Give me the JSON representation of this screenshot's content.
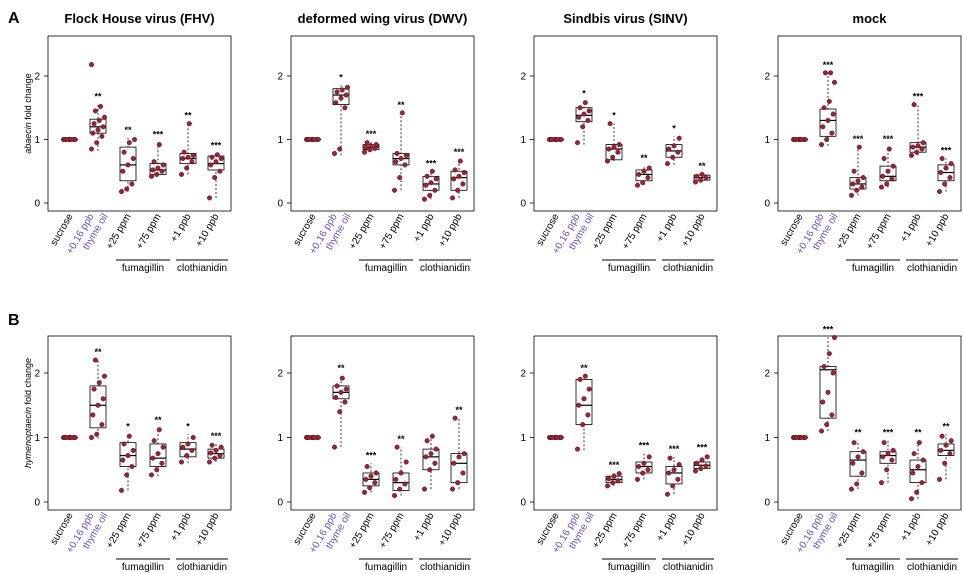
{
  "colors": {
    "point": "#9b2335",
    "point_stroke": "#3a0d14",
    "box": "#000000",
    "axis": "#000000",
    "thyme_label": "#6a4fc1"
  },
  "row_labels": [
    "A",
    "B"
  ],
  "ylabels": [
    {
      "gene": "abaecin",
      "suffix": " fold change"
    },
    {
      "gene": "hymenoptaecin",
      "suffix": " fold change"
    }
  ],
  "categories": [
    "sucrose",
    "+0.16 ppb",
    "thyme oil",
    "+25 ppm",
    "+75 ppm",
    "+1 ppb",
    "+10 ppb"
  ],
  "groups": [
    "fumagillin",
    "clothianidin"
  ],
  "yticks": [
    "0",
    "1",
    "2"
  ],
  "chart_data": [
    {
      "type": "box",
      "title": "Flock House virus (FHV)",
      "ylabel": "abaecin fold change",
      "ylim": [
        0,
        2.5
      ],
      "boxes": [
        {
          "cat": "sucrose",
          "q1": 1,
          "med": 1,
          "q3": 1,
          "lo": 1,
          "hi": 1,
          "sig": "",
          "points": [
            1,
            1,
            1,
            1,
            1,
            1,
            1,
            1
          ]
        },
        {
          "cat": "+0.16 ppb thyme oil",
          "q1": 1.1,
          "med": 1.2,
          "q3": 1.32,
          "lo": 0.82,
          "hi": 1.55,
          "sig": "**",
          "points": [
            0.85,
            0.95,
            1.05,
            1.1,
            1.15,
            1.2,
            1.25,
            1.3,
            1.35,
            1.45,
            1.52,
            2.18
          ]
        },
        {
          "cat": "+25 ppm fumagillin",
          "q1": 0.35,
          "med": 0.6,
          "q3": 0.88,
          "lo": 0.18,
          "hi": 1.02,
          "sig": "**",
          "points": [
            0.18,
            0.22,
            0.3,
            0.5,
            0.6,
            0.7,
            0.8,
            0.95,
            1.0
          ]
        },
        {
          "cat": "+75 ppm fumagillin",
          "q1": 0.45,
          "med": 0.52,
          "q3": 0.62,
          "lo": 0.42,
          "hi": 0.95,
          "sig": "***",
          "points": [
            0.42,
            0.45,
            0.5,
            0.52,
            0.55,
            0.6,
            0.65,
            0.92
          ]
        },
        {
          "cat": "+1 ppb clothianidin",
          "q1": 0.62,
          "med": 0.7,
          "q3": 0.78,
          "lo": 0.45,
          "hi": 1.25,
          "sig": "**",
          "points": [
            0.45,
            0.55,
            0.65,
            0.7,
            0.72,
            0.75,
            0.8,
            1.25
          ]
        },
        {
          "cat": "+10 ppb clothianidin",
          "q1": 0.52,
          "med": 0.62,
          "q3": 0.74,
          "lo": 0.08,
          "hi": 0.78,
          "sig": "***",
          "points": [
            0.08,
            0.4,
            0.5,
            0.6,
            0.65,
            0.7,
            0.72,
            0.76
          ]
        }
      ]
    },
    {
      "type": "box",
      "title": "deformed wing virus (DWV)",
      "ylabel": "",
      "ylim": [
        0,
        2.5
      ],
      "boxes": [
        {
          "cat": "sucrose",
          "q1": 1,
          "med": 1,
          "q3": 1,
          "lo": 1,
          "hi": 1,
          "sig": "",
          "points": [
            1,
            1,
            1,
            1,
            1,
            1,
            1,
            1
          ]
        },
        {
          "cat": "+0.16 ppb thyme oil",
          "q1": 1.55,
          "med": 1.7,
          "q3": 1.8,
          "lo": 0.75,
          "hi": 1.85,
          "sig": "*",
          "points": [
            0.78,
            0.85,
            1.5,
            1.58,
            1.65,
            1.7,
            1.75,
            1.78,
            1.82
          ]
        },
        {
          "cat": "+25 ppm fumagillin",
          "q1": 0.84,
          "med": 0.88,
          "q3": 0.92,
          "lo": 0.8,
          "hi": 0.96,
          "sig": "***",
          "points": [
            0.8,
            0.84,
            0.86,
            0.88,
            0.9,
            0.92,
            0.95
          ]
        },
        {
          "cat": "+75 ppm fumagillin",
          "q1": 0.6,
          "med": 0.7,
          "q3": 0.78,
          "lo": 0.2,
          "hi": 1.42,
          "sig": "**",
          "points": [
            0.2,
            0.4,
            0.6,
            0.65,
            0.7,
            0.75,
            0.78,
            1.42
          ]
        },
        {
          "cat": "+1 ppb clothianidin",
          "q1": 0.2,
          "med": 0.3,
          "q3": 0.42,
          "lo": 0.06,
          "hi": 0.5,
          "sig": "***",
          "points": [
            0.06,
            0.12,
            0.2,
            0.28,
            0.32,
            0.38,
            0.42,
            0.5
          ]
        },
        {
          "cat": "+10 ppb clothianidin",
          "q1": 0.2,
          "med": 0.4,
          "q3": 0.5,
          "lo": 0.08,
          "hi": 0.68,
          "sig": "***",
          "points": [
            0.08,
            0.2,
            0.3,
            0.38,
            0.42,
            0.48,
            0.52,
            0.66
          ]
        }
      ]
    },
    {
      "type": "box",
      "title": "Sindbis virus (SINV)",
      "ylabel": "",
      "ylim": [
        0,
        2.5
      ],
      "boxes": [
        {
          "cat": "sucrose",
          "q1": 1,
          "med": 1,
          "q3": 1,
          "lo": 1,
          "hi": 1,
          "sig": "",
          "points": [
            1,
            1,
            1,
            1,
            1,
            1,
            1,
            1
          ]
        },
        {
          "cat": "+0.16 ppb thyme oil",
          "q1": 1.28,
          "med": 1.38,
          "q3": 1.5,
          "lo": 0.92,
          "hi": 1.6,
          "sig": "*",
          "points": [
            0.95,
            1.2,
            1.3,
            1.35,
            1.4,
            1.45,
            1.5,
            1.58
          ]
        },
        {
          "cat": "+25 ppm fumagillin",
          "q1": 0.68,
          "med": 0.85,
          "q3": 0.92,
          "lo": 0.66,
          "hi": 1.25,
          "sig": "*",
          "points": [
            0.66,
            0.72,
            0.8,
            0.85,
            0.88,
            0.92,
            1.25
          ]
        },
        {
          "cat": "+75 ppm fumagillin",
          "q1": 0.35,
          "med": 0.45,
          "q3": 0.52,
          "lo": 0.28,
          "hi": 0.58,
          "sig": "**",
          "points": [
            0.28,
            0.32,
            0.4,
            0.45,
            0.5,
            0.55
          ]
        },
        {
          "cat": "+1 ppb clothianidin",
          "q1": 0.72,
          "med": 0.82,
          "q3": 0.92,
          "lo": 0.6,
          "hi": 1.05,
          "sig": "*",
          "points": [
            0.62,
            0.72,
            0.8,
            0.85,
            0.9,
            1.02
          ]
        },
        {
          "cat": "+10 ppb clothianidin",
          "q1": 0.36,
          "med": 0.4,
          "q3": 0.44,
          "lo": 0.33,
          "hi": 0.46,
          "sig": "**",
          "points": [
            0.33,
            0.36,
            0.4,
            0.42,
            0.45
          ]
        }
      ]
    },
    {
      "type": "box",
      "title": "mock",
      "ylabel": "",
      "ylim": [
        0,
        2.5
      ],
      "boxes": [
        {
          "cat": "sucrose",
          "q1": 1,
          "med": 1,
          "q3": 1,
          "lo": 1,
          "hi": 1,
          "sig": "",
          "points": [
            1,
            1,
            1,
            1,
            1,
            1,
            1,
            1
          ]
        },
        {
          "cat": "+0.16 ppb thyme oil",
          "q1": 1.05,
          "med": 1.3,
          "q3": 1.48,
          "lo": 0.9,
          "hi": 2.05,
          "sig": "***",
          "points": [
            0.92,
            1.0,
            1.1,
            1.2,
            1.3,
            1.4,
            1.5,
            1.6,
            1.9,
            2.05,
            2.05
          ]
        },
        {
          "cat": "+25 ppm fumagillin",
          "q1": 0.22,
          "med": 0.3,
          "q3": 0.4,
          "lo": 0.12,
          "hi": 0.88,
          "sig": "***",
          "points": [
            0.12,
            0.2,
            0.25,
            0.3,
            0.35,
            0.4,
            0.5,
            0.88
          ]
        },
        {
          "cat": "+75 ppm fumagillin",
          "q1": 0.35,
          "med": 0.42,
          "q3": 0.58,
          "lo": 0.25,
          "hi": 0.88,
          "sig": "***",
          "points": [
            0.25,
            0.3,
            0.38,
            0.42,
            0.5,
            0.58,
            0.7,
            0.85
          ]
        },
        {
          "cat": "+1 ppb clothianidin",
          "q1": 0.8,
          "med": 0.88,
          "q3": 0.95,
          "lo": 0.75,
          "hi": 1.55,
          "sig": "***",
          "points": [
            0.75,
            0.8,
            0.85,
            0.88,
            0.9,
            0.95,
            1.55
          ]
        },
        {
          "cat": "+10 ppb clothianidin",
          "q1": 0.35,
          "med": 0.48,
          "q3": 0.6,
          "lo": 0.18,
          "hi": 0.7,
          "sig": "***",
          "points": [
            0.18,
            0.3,
            0.4,
            0.48,
            0.55,
            0.62,
            0.7
          ]
        }
      ]
    },
    {
      "type": "box",
      "title": "",
      "ylabel": "hymenoptaecin fold change",
      "ylim": [
        0,
        2.6
      ],
      "boxes": [
        {
          "cat": "sucrose",
          "q1": 1,
          "med": 1,
          "q3": 1,
          "lo": 1,
          "hi": 1,
          "sig": "",
          "points": [
            1,
            1,
            1,
            1,
            1,
            1,
            1,
            1
          ]
        },
        {
          "cat": "+0.16 ppb thyme oil",
          "q1": 1.15,
          "med": 1.5,
          "q3": 1.8,
          "lo": 0.98,
          "hi": 2.2,
          "sig": "**",
          "points": [
            1.0,
            1.05,
            1.2,
            1.35,
            1.5,
            1.6,
            1.75,
            1.85,
            1.95,
            2.2
          ]
        },
        {
          "cat": "+25 ppm fumagillin",
          "q1": 0.55,
          "med": 0.72,
          "q3": 0.92,
          "lo": 0.18,
          "hi": 1.05,
          "sig": "*",
          "points": [
            0.18,
            0.42,
            0.55,
            0.65,
            0.72,
            0.8,
            0.9,
            1.02
          ]
        },
        {
          "cat": "+75 ppm fumagillin",
          "q1": 0.55,
          "med": 0.68,
          "q3": 0.9,
          "lo": 0.4,
          "hi": 1.15,
          "sig": "**",
          "points": [
            0.42,
            0.5,
            0.6,
            0.68,
            0.75,
            0.85,
            0.95,
            1.12
          ]
        },
        {
          "cat": "+1 ppb clothianidin",
          "q1": 0.7,
          "med": 0.82,
          "q3": 0.92,
          "lo": 0.6,
          "hi": 1.05,
          "sig": "*",
          "points": [
            0.62,
            0.72,
            0.8,
            0.85,
            0.9,
            1.0
          ]
        },
        {
          "cat": "+10 ppb clothianidin",
          "q1": 0.68,
          "med": 0.75,
          "q3": 0.82,
          "lo": 0.62,
          "hi": 0.9,
          "sig": "***",
          "points": [
            0.62,
            0.68,
            0.72,
            0.76,
            0.8,
            0.85,
            0.88
          ]
        }
      ]
    },
    {
      "type": "box",
      "title": "",
      "ylabel": "",
      "ylim": [
        0,
        2.6
      ],
      "boxes": [
        {
          "cat": "sucrose",
          "q1": 1,
          "med": 1,
          "q3": 1,
          "lo": 1,
          "hi": 1,
          "sig": "",
          "points": [
            1,
            1,
            1,
            1,
            1,
            1,
            1,
            1
          ]
        },
        {
          "cat": "+0.16 ppb thyme oil",
          "q1": 1.6,
          "med": 1.7,
          "q3": 1.8,
          "lo": 0.85,
          "hi": 1.95,
          "sig": "**",
          "points": [
            0.85,
            1.4,
            1.55,
            1.62,
            1.7,
            1.75,
            1.8,
            1.92
          ]
        },
        {
          "cat": "+25 ppm fumagillin",
          "q1": 0.25,
          "med": 0.35,
          "q3": 0.45,
          "lo": 0.15,
          "hi": 0.6,
          "sig": "***",
          "points": [
            0.15,
            0.22,
            0.3,
            0.35,
            0.4,
            0.45,
            0.55
          ]
        },
        {
          "cat": "+75 ppm fumagillin",
          "q1": 0.18,
          "med": 0.3,
          "q3": 0.45,
          "lo": 0.1,
          "hi": 0.85,
          "sig": "**",
          "points": [
            0.1,
            0.2,
            0.28,
            0.35,
            0.45,
            0.62,
            0.85
          ]
        },
        {
          "cat": "+1 ppb clothianidin",
          "q1": 0.5,
          "med": 0.7,
          "q3": 0.82,
          "lo": 0.2,
          "hi": 1.05,
          "sig": "",
          "points": [
            0.2,
            0.5,
            0.6,
            0.7,
            0.75,
            0.82,
            0.95,
            1.02
          ]
        },
        {
          "cat": "+10 ppb clothianidin",
          "q1": 0.3,
          "med": 0.6,
          "q3": 0.75,
          "lo": 0.2,
          "hi": 1.3,
          "sig": "**",
          "points": [
            0.2,
            0.3,
            0.45,
            0.6,
            0.7,
            0.75,
            1.3
          ]
        }
      ]
    },
    {
      "type": "box",
      "title": "",
      "ylabel": "",
      "ylim": [
        0,
        2.6
      ],
      "boxes": [
        {
          "cat": "sucrose",
          "q1": 1,
          "med": 1,
          "q3": 1,
          "lo": 1,
          "hi": 1,
          "sig": "",
          "points": [
            1,
            1,
            1,
            1,
            1,
            1,
            1,
            1
          ]
        },
        {
          "cat": "+0.16 ppb thyme oil",
          "q1": 1.2,
          "med": 1.5,
          "q3": 1.9,
          "lo": 0.8,
          "hi": 1.95,
          "sig": "**",
          "points": [
            0.82,
            1.2,
            1.35,
            1.5,
            1.6,
            1.75,
            1.9,
            1.95
          ]
        },
        {
          "cat": "+25 ppm fumagillin",
          "q1": 0.3,
          "med": 0.35,
          "q3": 0.4,
          "lo": 0.25,
          "hi": 0.45,
          "sig": "***",
          "points": [
            0.25,
            0.3,
            0.33,
            0.36,
            0.4,
            0.44
          ]
        },
        {
          "cat": "+75 ppm fumagillin",
          "q1": 0.45,
          "med": 0.55,
          "q3": 0.62,
          "lo": 0.35,
          "hi": 0.75,
          "sig": "***",
          "points": [
            0.35,
            0.45,
            0.5,
            0.55,
            0.6,
            0.7
          ]
        },
        {
          "cat": "+1 ppb clothianidin",
          "q1": 0.28,
          "med": 0.45,
          "q3": 0.55,
          "lo": 0.12,
          "hi": 0.7,
          "sig": "***",
          "points": [
            0.12,
            0.25,
            0.35,
            0.45,
            0.5,
            0.58,
            0.68
          ]
        },
        {
          "cat": "+10 ppb clothianidin",
          "q1": 0.52,
          "med": 0.57,
          "q3": 0.62,
          "lo": 0.48,
          "hi": 0.72,
          "sig": "***",
          "points": [
            0.48,
            0.52,
            0.56,
            0.6,
            0.65,
            0.7
          ]
        }
      ]
    },
    {
      "type": "box",
      "title": "",
      "ylabel": "",
      "ylim": [
        0,
        2.6
      ],
      "boxes": [
        {
          "cat": "sucrose",
          "q1": 1,
          "med": 1,
          "q3": 1,
          "lo": 1,
          "hi": 1,
          "sig": "",
          "points": [
            1,
            1,
            1,
            1,
            1,
            1,
            1,
            1
          ]
        },
        {
          "cat": "+0.16 ppb thyme oil",
          "q1": 1.3,
          "med": 2.05,
          "q3": 2.1,
          "lo": 1.1,
          "hi": 2.55,
          "sig": "***",
          "points": [
            1.1,
            1.2,
            1.35,
            1.55,
            1.7,
            2.0,
            2.1,
            2.3,
            2.55
          ]
        },
        {
          "cat": "+25 ppm fumagillin",
          "q1": 0.4,
          "med": 0.65,
          "q3": 0.78,
          "lo": 0.2,
          "hi": 0.95,
          "sig": "**",
          "points": [
            0.2,
            0.28,
            0.45,
            0.6,
            0.7,
            0.78,
            0.92
          ]
        },
        {
          "cat": "+75 ppm fumagillin",
          "q1": 0.6,
          "med": 0.72,
          "q3": 0.78,
          "lo": 0.3,
          "hi": 0.95,
          "sig": "***",
          "points": [
            0.3,
            0.5,
            0.65,
            0.7,
            0.75,
            0.8,
            0.92
          ]
        },
        {
          "cat": "+1 ppb clothianidin",
          "q1": 0.3,
          "med": 0.5,
          "q3": 0.65,
          "lo": 0.05,
          "hi": 0.95,
          "sig": "**",
          "points": [
            0.05,
            0.15,
            0.3,
            0.45,
            0.55,
            0.65,
            0.75,
            0.92
          ]
        },
        {
          "cat": "+10 ppb clothianidin",
          "q1": 0.72,
          "med": 0.8,
          "q3": 0.9,
          "lo": 0.35,
          "hi": 1.05,
          "sig": "**",
          "points": [
            0.35,
            0.6,
            0.75,
            0.8,
            0.88,
            0.95,
            1.02
          ]
        }
      ]
    }
  ]
}
